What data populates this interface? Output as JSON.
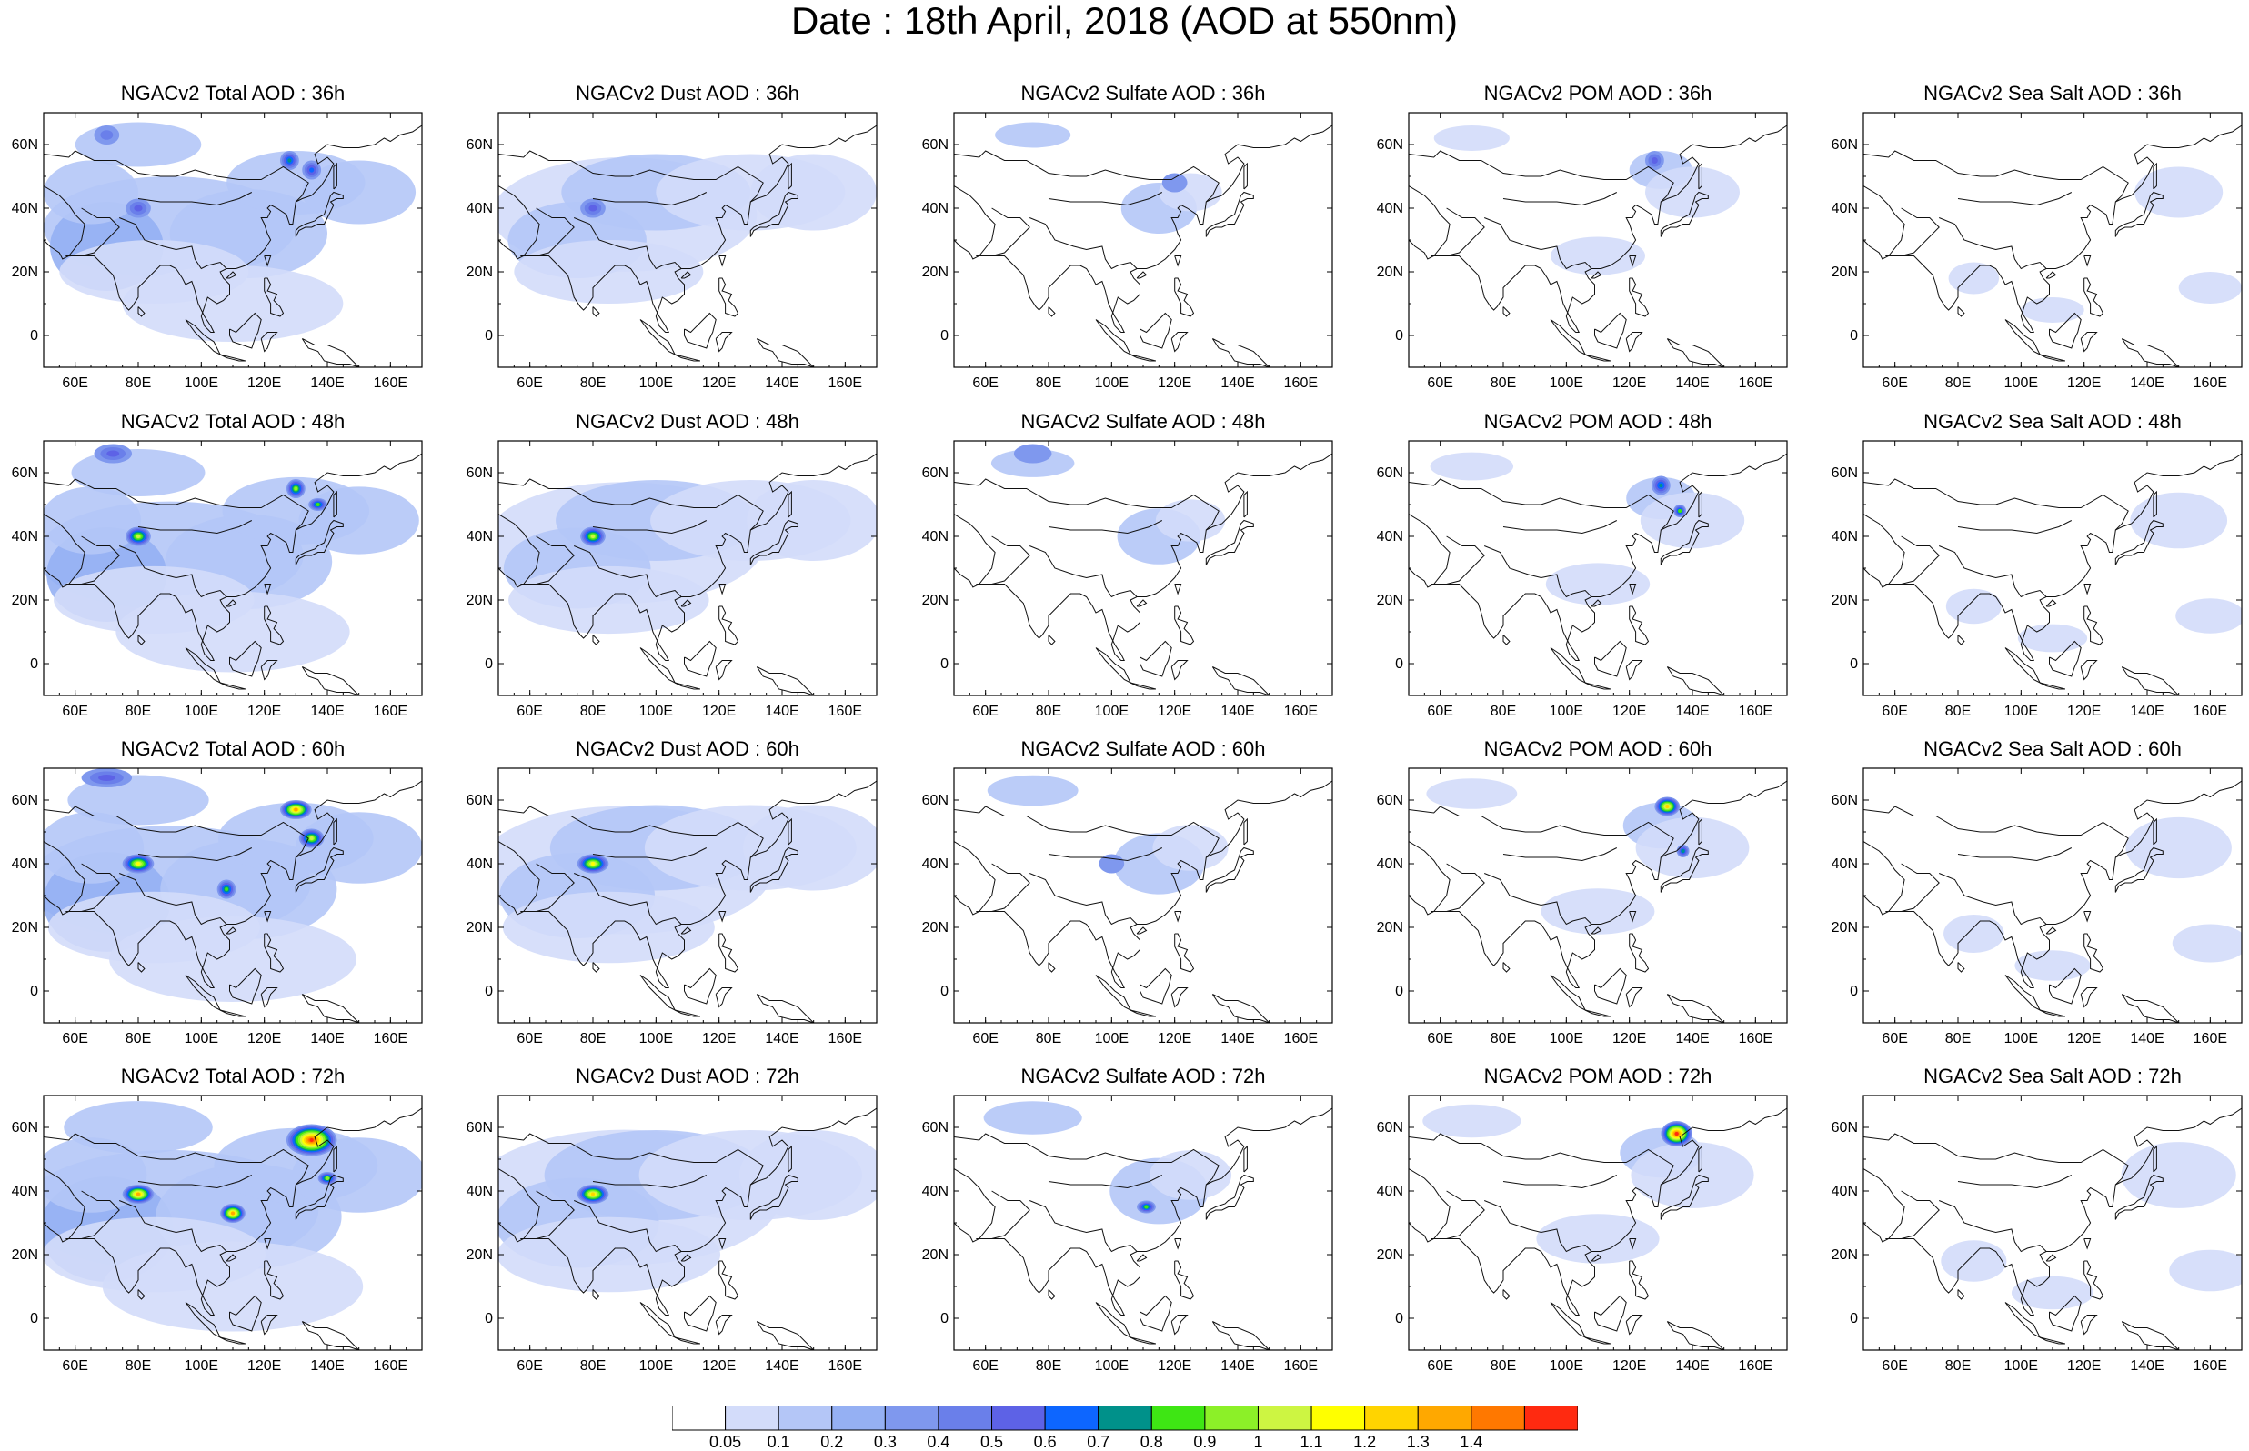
{
  "figure": {
    "title": "Date : 18th April, 2018 (AOD at 550nm)"
  },
  "axes": {
    "lat_labels": [
      "60N",
      "40N",
      "20N",
      "0"
    ],
    "lat_values": [
      60,
      40,
      20,
      0
    ],
    "lat_range": [
      -10,
      70
    ],
    "lon_labels": [
      "60E",
      "80E",
      "100E",
      "120E",
      "140E",
      "160E"
    ],
    "lon_values": [
      60,
      80,
      100,
      120,
      140,
      160
    ],
    "lon_range": [
      50,
      170
    ]
  },
  "panels": [
    [
      "NGACv2 Total AOD : 36h",
      "NGACv2 Dust AOD : 36h",
      "NGACv2 Sulfate AOD : 36h",
      "NGACv2 POM AOD : 36h",
      "NGACv2 Sea Salt AOD : 36h"
    ],
    [
      "NGACv2 Total AOD : 48h",
      "NGACv2 Dust AOD : 48h",
      "NGACv2 Sulfate AOD : 48h",
      "NGACv2 POM AOD : 48h",
      "NGACv2 Sea Salt AOD : 48h"
    ],
    [
      "NGACv2 Total AOD : 60h",
      "NGACv2 Dust AOD : 60h",
      "NGACv2 Sulfate AOD : 60h",
      "NGACv2 POM AOD : 60h",
      "NGACv2 Sea Salt AOD : 60h"
    ],
    [
      "NGACv2 Total AOD : 72h",
      "NGACv2 Dust AOD : 72h",
      "NGACv2 Sulfate AOD : 72h",
      "NGACv2 POM AOD : 72h",
      "NGACv2 Sea Salt  AOD : 72h"
    ]
  ],
  "colorbar": {
    "labels": [
      "0.05",
      "0.1",
      "0.2",
      "0.3",
      "0.4",
      "0.5",
      "0.6",
      "0.7",
      "0.8",
      "0.9",
      "1",
      "1.1",
      "1.2",
      "1.3",
      "1.4"
    ],
    "colors": [
      "#ffffff",
      "#d3dcfa",
      "#b4c6f7",
      "#95b0f3",
      "#7f98ee",
      "#6a7fea",
      "#5d62e6",
      "#0d66ff",
      "#00918a",
      "#3ee614",
      "#8cf028",
      "#cdf542",
      "#ffff00",
      "#ffd400",
      "#ffa800",
      "#ff7800",
      "#ff2a10"
    ]
  }
}
